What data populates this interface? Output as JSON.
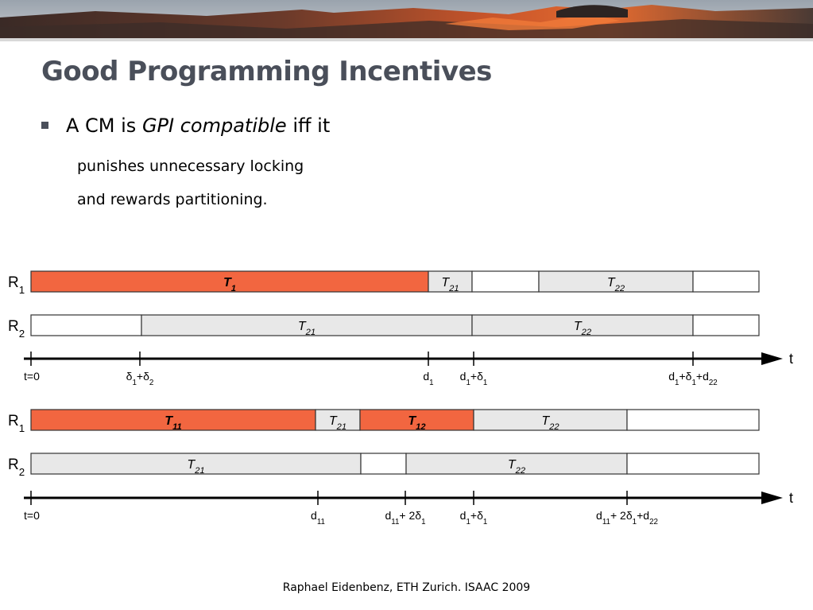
{
  "slide": {
    "title": "Good Programming Incentives",
    "bullet": {
      "prefix": "A CM is ",
      "emphasis": "GPI compatible",
      "suffix": " iff it"
    },
    "sub_items": [
      "punishes unnecessary locking",
      "and rewards partitioning."
    ],
    "footer": "Raphael Eidenbenz, ETH Zurich. ISAAC 2009"
  },
  "colors": {
    "lock": "#f26640",
    "shared": "#e8e8e8",
    "idle": "#ffffff",
    "title": "#4a4f5a"
  },
  "diagram": {
    "axis_label": "t",
    "schedules": [
      {
        "rows": [
          {
            "label": "R",
            "sub": "1",
            "segments": [
              {
                "label": "T",
                "sub": "1",
                "kind": "lock"
              },
              {
                "label": "T",
                "sub": "21",
                "kind": "shared"
              },
              {
                "label": "",
                "sub": "",
                "kind": "idle"
              },
              {
                "label": "T",
                "sub": "22",
                "kind": "shared"
              },
              {
                "label": "",
                "sub": "",
                "kind": "idle"
              }
            ]
          },
          {
            "label": "R",
            "sub": "2",
            "segments": [
              {
                "label": "",
                "sub": "",
                "kind": "idle"
              },
              {
                "label": "T",
                "sub": "21",
                "kind": "shared"
              },
              {
                "label": "T",
                "sub": "22",
                "kind": "shared"
              },
              {
                "label": "",
                "sub": "",
                "kind": "idle"
              }
            ]
          }
        ],
        "ticks": [
          {
            "parts": [
              [
                "t=0",
                ""
              ]
            ]
          },
          {
            "parts": [
              [
                "δ",
                "1"
              ],
              [
                "+δ",
                "2"
              ]
            ]
          },
          {
            "parts": [
              [
                "d",
                "1"
              ]
            ]
          },
          {
            "parts": [
              [
                "d",
                "1"
              ],
              [
                "+δ",
                "1"
              ]
            ]
          },
          {
            "parts": [
              [
                "d",
                "1"
              ],
              [
                "+δ",
                "1"
              ],
              [
                "+d",
                "22"
              ]
            ]
          }
        ]
      },
      {
        "rows": [
          {
            "label": "R",
            "sub": "1",
            "segments": [
              {
                "label": "T",
                "sub": "11",
                "kind": "lock"
              },
              {
                "label": "T",
                "sub": "21",
                "kind": "shared"
              },
              {
                "label": "T",
                "sub": "12",
                "kind": "lock"
              },
              {
                "label": "T",
                "sub": "22",
                "kind": "shared"
              },
              {
                "label": "",
                "sub": "",
                "kind": "idle"
              }
            ]
          },
          {
            "label": "R",
            "sub": "2",
            "segments": [
              {
                "label": "T",
                "sub": "21",
                "kind": "shared"
              },
              {
                "label": "",
                "sub": "",
                "kind": "idle"
              },
              {
                "label": "T",
                "sub": "22",
                "kind": "shared"
              },
              {
                "label": "",
                "sub": "",
                "kind": "idle"
              }
            ]
          }
        ],
        "ticks": [
          {
            "parts": [
              [
                "t=0",
                ""
              ]
            ]
          },
          {
            "parts": [
              [
                "d",
                "11"
              ]
            ]
          },
          {
            "parts": [
              [
                "d",
                "11"
              ],
              [
                "+ 2δ",
                "1"
              ]
            ]
          },
          {
            "parts": [
              [
                "d",
                "1"
              ],
              [
                "+δ",
                "1"
              ]
            ]
          },
          {
            "parts": [
              [
                "d",
                "11"
              ],
              [
                "+ 2δ",
                "1"
              ],
              [
                "+d",
                "22"
              ]
            ]
          }
        ]
      }
    ]
  }
}
